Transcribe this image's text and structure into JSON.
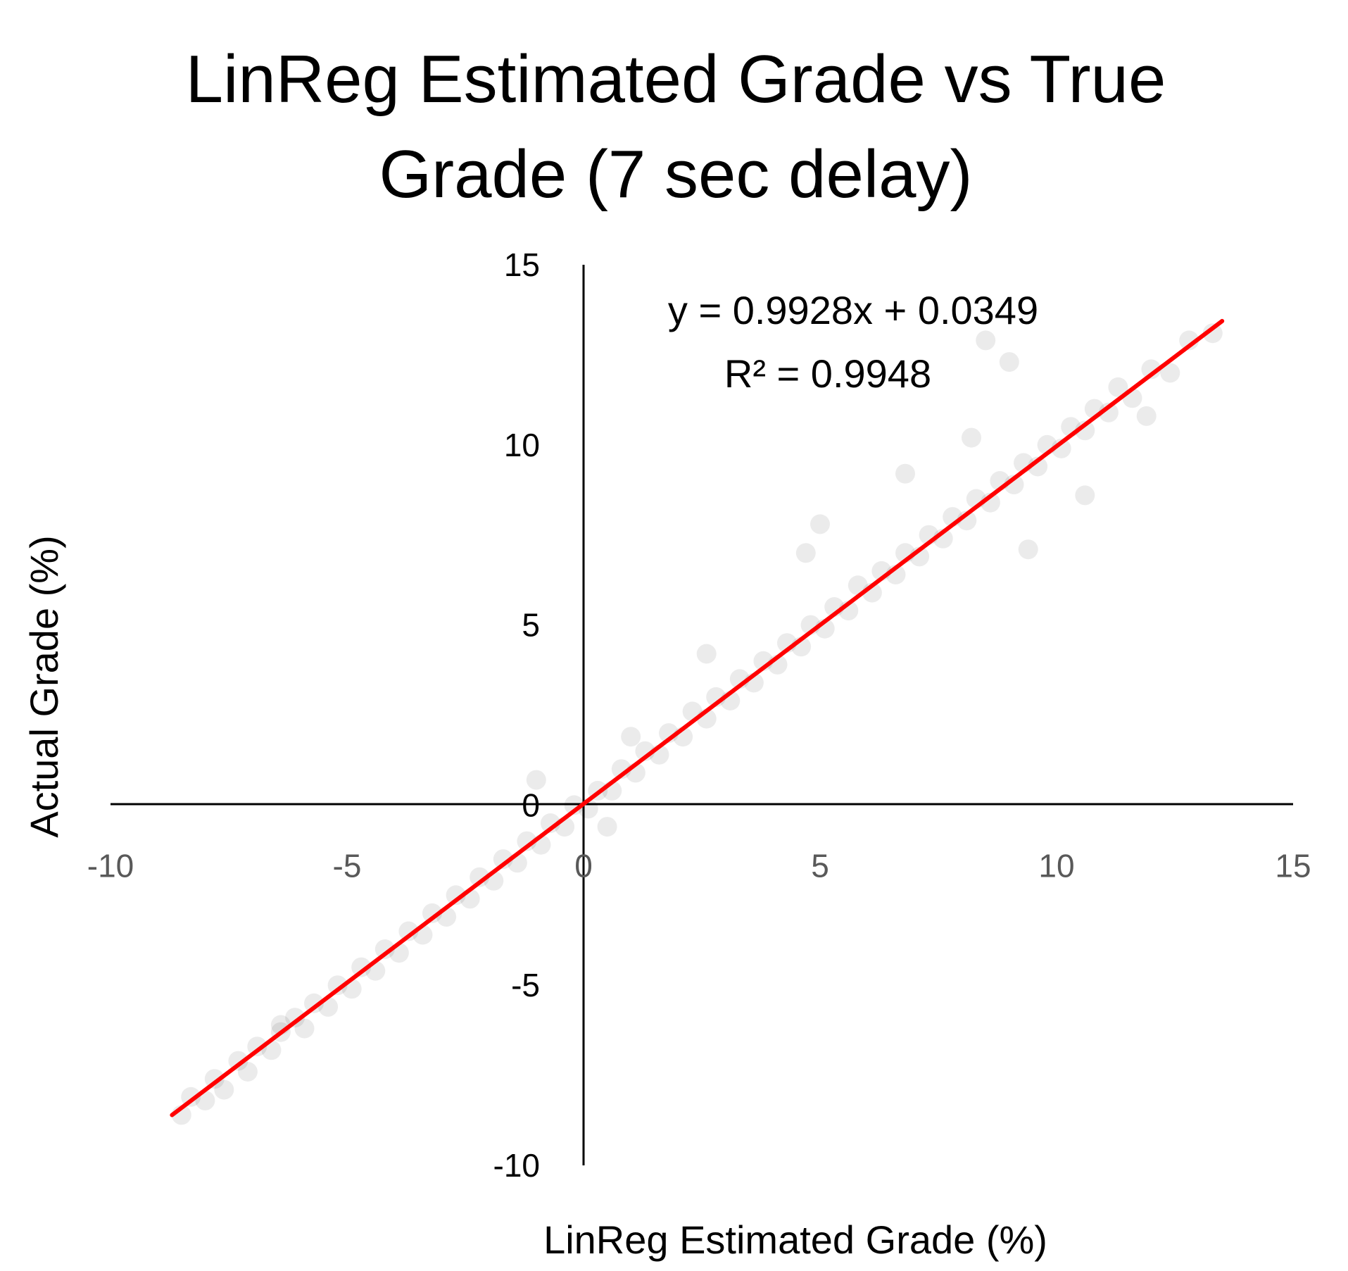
{
  "chart_data": {
    "type": "scatter",
    "title_lines": [
      "LinReg Estimated Grade vs True",
      "Grade (7 sec delay)"
    ],
    "xlabel": "LinReg Estimated Grade (%)",
    "ylabel": "Actual Grade (%)",
    "xlim": [
      -10,
      15
    ],
    "ylim": [
      -10,
      15
    ],
    "x_ticks": [
      "-10",
      "-5",
      "0",
      "5",
      "10",
      "15"
    ],
    "y_ticks": [
      "-10",
      "-5",
      "0",
      "5",
      "10",
      "15"
    ],
    "grid": false,
    "legend": "none",
    "series": [
      {
        "color": "#000000",
        "opacity": 0.08,
        "points": [
          [
            -8.5,
            -8.6
          ],
          [
            -8.3,
            -8.1
          ],
          [
            -8.0,
            -8.2
          ],
          [
            -7.8,
            -7.6
          ],
          [
            -7.6,
            -7.9
          ],
          [
            -7.3,
            -7.1
          ],
          [
            -7.1,
            -7.4
          ],
          [
            -6.9,
            -6.7
          ],
          [
            -6.6,
            -6.8
          ],
          [
            -6.4,
            -6.3
          ],
          [
            -6.1,
            -5.9
          ],
          [
            -5.9,
            -6.2
          ],
          [
            -5.7,
            -5.5
          ],
          [
            -5.4,
            -5.6
          ],
          [
            -5.2,
            -5.0
          ],
          [
            -4.9,
            -5.1
          ],
          [
            -4.7,
            -4.5
          ],
          [
            -4.4,
            -4.6
          ],
          [
            -4.2,
            -4.0
          ],
          [
            -3.9,
            -4.1
          ],
          [
            -3.7,
            -3.5
          ],
          [
            -3.4,
            -3.6
          ],
          [
            -3.2,
            -3.0
          ],
          [
            -2.9,
            -3.1
          ],
          [
            -2.7,
            -2.5
          ],
          [
            -2.4,
            -2.6
          ],
          [
            -2.2,
            -2.0
          ],
          [
            -1.9,
            -2.1
          ],
          [
            -1.7,
            -1.5
          ],
          [
            -1.4,
            -1.6
          ],
          [
            -1.2,
            -1.0
          ],
          [
            -0.9,
            -1.1
          ],
          [
            -0.7,
            -0.5
          ],
          [
            -0.4,
            -0.6
          ],
          [
            -0.2,
            0.0
          ],
          [
            0.1,
            -0.1
          ],
          [
            0.3,
            0.4
          ],
          [
            0.6,
            0.4
          ],
          [
            0.8,
            1.0
          ],
          [
            1.1,
            0.9
          ],
          [
            1.3,
            1.5
          ],
          [
            1.6,
            1.4
          ],
          [
            1.8,
            2.0
          ],
          [
            2.1,
            1.9
          ],
          [
            2.3,
            2.6
          ],
          [
            2.6,
            2.4
          ],
          [
            2.8,
            3.0
          ],
          [
            3.1,
            2.9
          ],
          [
            3.3,
            3.5
          ],
          [
            3.6,
            3.4
          ],
          [
            3.8,
            4.0
          ],
          [
            4.1,
            3.9
          ],
          [
            4.3,
            4.5
          ],
          [
            4.6,
            4.4
          ],
          [
            4.8,
            5.0
          ],
          [
            5.1,
            4.9
          ],
          [
            5.3,
            5.5
          ],
          [
            5.6,
            5.4
          ],
          [
            5.8,
            6.1
          ],
          [
            6.1,
            5.9
          ],
          [
            6.3,
            6.5
          ],
          [
            6.6,
            6.4
          ],
          [
            6.8,
            7.0
          ],
          [
            7.1,
            6.9
          ],
          [
            7.3,
            7.5
          ],
          [
            7.6,
            7.4
          ],
          [
            7.8,
            8.0
          ],
          [
            8.1,
            7.9
          ],
          [
            8.3,
            8.5
          ],
          [
            8.6,
            8.4
          ],
          [
            8.8,
            9.0
          ],
          [
            9.1,
            8.9
          ],
          [
            9.3,
            9.5
          ],
          [
            9.6,
            9.4
          ],
          [
            9.8,
            10.0
          ],
          [
            10.1,
            9.9
          ],
          [
            10.3,
            10.5
          ],
          [
            10.6,
            10.4
          ],
          [
            10.8,
            11.0
          ],
          [
            11.1,
            10.9
          ],
          [
            11.3,
            11.6
          ],
          [
            11.6,
            11.3
          ],
          [
            12.0,
            12.1
          ],
          [
            12.4,
            12.0
          ],
          [
            12.8,
            12.9
          ],
          [
            13.3,
            13.1
          ],
          [
            9.0,
            12.3
          ],
          [
            8.5,
            12.9
          ],
          [
            5.0,
            7.8
          ],
          [
            1.0,
            1.9
          ],
          [
            6.8,
            9.2
          ],
          [
            9.4,
            7.1
          ],
          [
            10.6,
            8.6
          ],
          [
            2.6,
            4.2
          ],
          [
            -1.0,
            0.7
          ],
          [
            0.5,
            -0.6
          ],
          [
            11.9,
            10.8
          ],
          [
            4.7,
            7.0
          ],
          [
            -6.4,
            -6.1
          ],
          [
            8.2,
            10.2
          ]
        ]
      }
    ],
    "trendline": {
      "type": "linear",
      "slope": 0.9928,
      "intercept": 0.0349,
      "x_range": [
        -8.7,
        13.5
      ],
      "color": "#ff0000"
    },
    "annotations": [
      "y = 0.9928x + 0.0349",
      "R² = 0.9948"
    ]
  }
}
